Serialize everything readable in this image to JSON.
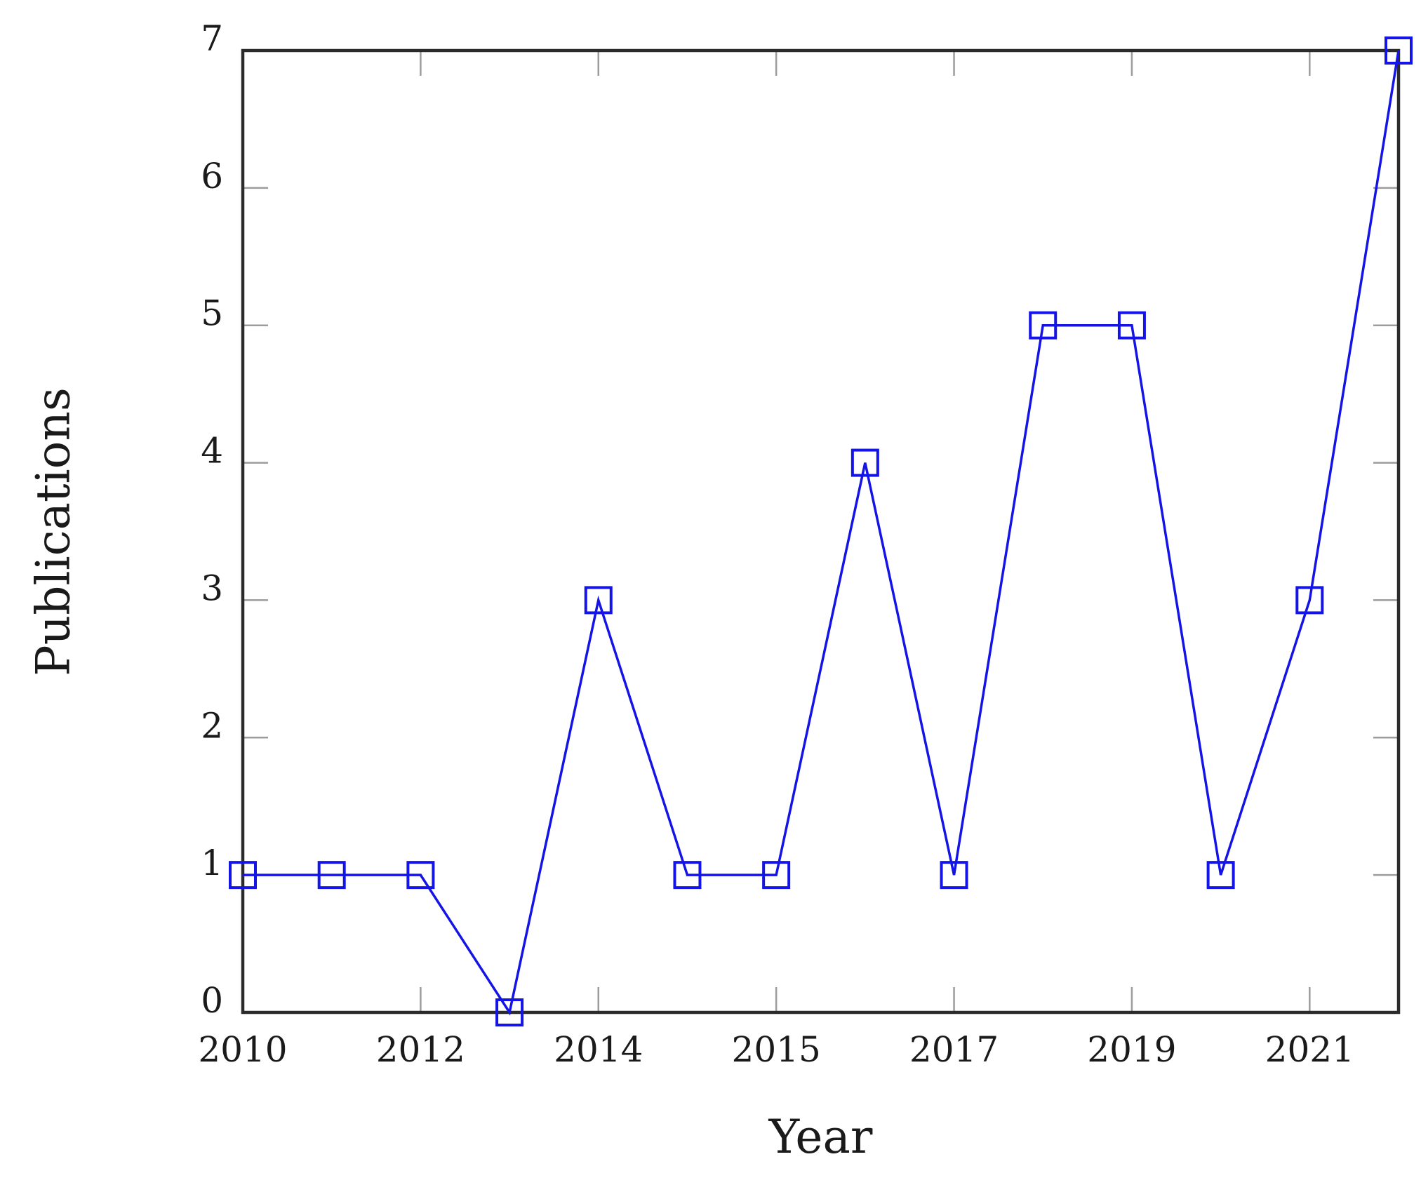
{
  "figure": {
    "background": "#ffffff"
  },
  "chart_data": {
    "type": "line",
    "title": "",
    "xlabel": "Year",
    "ylabel": "Publications",
    "ylim": [
      0,
      7
    ],
    "grid": false,
    "legend": "none",
    "frame": "full-box-with-mirrored-inward-ticks",
    "y_ticks": [
      0,
      1,
      2,
      3,
      4,
      5,
      6,
      7
    ],
    "x_tick_labels": [
      "2010",
      "2012",
      "2014",
      "2015",
      "2017",
      "2019",
      "2021"
    ],
    "x_tick_point_indices": [
      0,
      2,
      4,
      6,
      8,
      10,
      12
    ],
    "series": [
      {
        "name": "Publications",
        "marker": "open-square",
        "color": "#1414e6",
        "values": [
          1,
          1,
          1,
          0,
          3,
          1,
          1,
          4,
          1,
          5,
          5,
          1,
          3,
          7
        ]
      }
    ],
    "axis_color": "#2b2b2b",
    "tick_color": "#9c9c9c",
    "text_color": "#1a1a1a"
  }
}
